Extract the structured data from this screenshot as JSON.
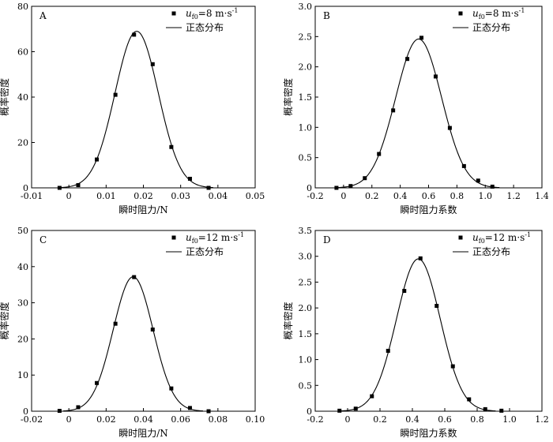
{
  "chart_data": [
    {
      "type": "scatter",
      "panel": "A",
      "xlabel": "瞬时阻力/N",
      "ylabel": "概率密度",
      "xlim": [
        -0.01,
        0.05
      ],
      "ylim": [
        0,
        80
      ],
      "xticks": [
        -0.01,
        0,
        0.01,
        0.02,
        0.03,
        0.04,
        0.05
      ],
      "yticks": [
        0,
        20,
        40,
        60,
        80
      ],
      "xtick_labels": [
        "-0.01",
        "0",
        "0.01",
        "0.02",
        "0.03",
        "0.04",
        "0.05"
      ],
      "ytick_labels": [
        "0",
        "20",
        "40",
        "60",
        "80"
      ],
      "legend_position": "top-right",
      "legend": {
        "marker_main": "u",
        "marker_sub": "f0",
        "marker_rest": "=8 m·s",
        "marker_sup": "-1",
        "line": "正态分布"
      },
      "series": [
        {
          "kind": "points",
          "x": [
            -0.0025,
            0.0025,
            0.0075,
            0.0125,
            0.0175,
            0.0225,
            0.0275,
            0.0325,
            0.0375
          ],
          "y": [
            0,
            1.2,
            12.5,
            41,
            67.5,
            54.5,
            18,
            4,
            0
          ]
        },
        {
          "kind": "normal-curve",
          "mean": 0.0182,
          "sd": 0.0058,
          "peak": 69
        }
      ]
    },
    {
      "type": "scatter",
      "panel": "B",
      "xlabel": "瞬时阻力系数",
      "ylabel": "概率密度",
      "xlim": [
        -0.2,
        1.4
      ],
      "ylim": [
        0,
        3.0
      ],
      "xticks": [
        -0.2,
        0,
        0.2,
        0.4,
        0.6,
        0.8,
        1.0,
        1.2,
        1.4
      ],
      "yticks": [
        0,
        0.5,
        1.0,
        1.5,
        2.0,
        2.5,
        3.0
      ],
      "xtick_labels": [
        "-0.2",
        "0",
        "0.2",
        "0.4",
        "0.6",
        "0.8",
        "1.0",
        "1.2",
        "1.4"
      ],
      "ytick_labels": [
        "0",
        "0.5",
        "1.0",
        "1.5",
        "2.0",
        "2.5",
        "3.0"
      ],
      "legend_position": "top-right",
      "legend": {
        "marker_main": "u",
        "marker_sub": "f0",
        "marker_rest": "=8 m·s",
        "marker_sup": "-1",
        "line": "正态分布"
      },
      "series": [
        {
          "kind": "points",
          "x": [
            -0.05,
            0.05,
            0.15,
            0.25,
            0.35,
            0.45,
            0.55,
            0.65,
            0.75,
            0.85,
            0.95,
            1.05
          ],
          "y": [
            0,
            0.03,
            0.16,
            0.56,
            1.28,
            2.13,
            2.48,
            1.84,
            0.99,
            0.36,
            0.12,
            0.02
          ]
        },
        {
          "kind": "normal-curve",
          "mean": 0.53,
          "sd": 0.162,
          "peak": 2.46
        }
      ]
    },
    {
      "type": "scatter",
      "panel": "C",
      "xlabel": "瞬时阻力/N",
      "ylabel": "概率密度",
      "xlim": [
        -0.02,
        0.1
      ],
      "ylim": [
        0,
        50
      ],
      "xticks": [
        -0.02,
        0,
        0.02,
        0.04,
        0.06,
        0.08,
        0.1
      ],
      "yticks": [
        0,
        10,
        20,
        30,
        40,
        50
      ],
      "xtick_labels": [
        "-0.02",
        "0",
        "0.02",
        "0.04",
        "0.06",
        "0.08",
        "0.10"
      ],
      "ytick_labels": [
        "0",
        "10",
        "20",
        "30",
        "40",
        "50"
      ],
      "legend_position": "top-right",
      "legend": {
        "marker_main": "u",
        "marker_sub": "f0",
        "marker_rest": "=12 m·s",
        "marker_sup": "-1",
        "line": "正态分布"
      },
      "series": [
        {
          "kind": "points",
          "x": [
            -0.005,
            0.005,
            0.015,
            0.025,
            0.035,
            0.045,
            0.055,
            0.065,
            0.075
          ],
          "y": [
            0.1,
            1.1,
            7.8,
            24.2,
            37.1,
            22.6,
            6.3,
            0.9,
            0
          ]
        },
        {
          "kind": "normal-curve",
          "mean": 0.0345,
          "sd": 0.0107,
          "peak": 37.2
        }
      ]
    },
    {
      "type": "scatter",
      "panel": "D",
      "xlabel": "瞬时阻力系数",
      "ylabel": "概率密度",
      "xlim": [
        -0.2,
        1.2
      ],
      "ylim": [
        0,
        3.5
      ],
      "xticks": [
        -0.2,
        0,
        0.2,
        0.4,
        0.6,
        0.8,
        1.0,
        1.2
      ],
      "yticks": [
        0,
        0.5,
        1.0,
        1.5,
        2.0,
        2.5,
        3.0,
        3.5
      ],
      "xtick_labels": [
        "-0.2",
        "0",
        "0.2",
        "0.4",
        "0.6",
        "0.8",
        "1.0",
        "1.2"
      ],
      "ytick_labels": [
        "0",
        "0.5",
        "1.0",
        "1.5",
        "2.0",
        "2.5",
        "3.0",
        "3.5"
      ],
      "legend_position": "top-right",
      "legend": {
        "marker_main": "u",
        "marker_sub": "f0",
        "marker_rest": "=12 m·s",
        "marker_sup": "-1",
        "line": "正态分布"
      },
      "series": [
        {
          "kind": "points",
          "x": [
            -0.05,
            0.05,
            0.15,
            0.25,
            0.35,
            0.45,
            0.55,
            0.65,
            0.75,
            0.85,
            0.95
          ],
          "y": [
            0.01,
            0.05,
            0.29,
            1.17,
            2.33,
            2.96,
            2.04,
            0.87,
            0.23,
            0.04,
            0.01
          ]
        },
        {
          "kind": "normal-curve",
          "mean": 0.437,
          "sd": 0.135,
          "peak": 2.95
        }
      ]
    }
  ]
}
